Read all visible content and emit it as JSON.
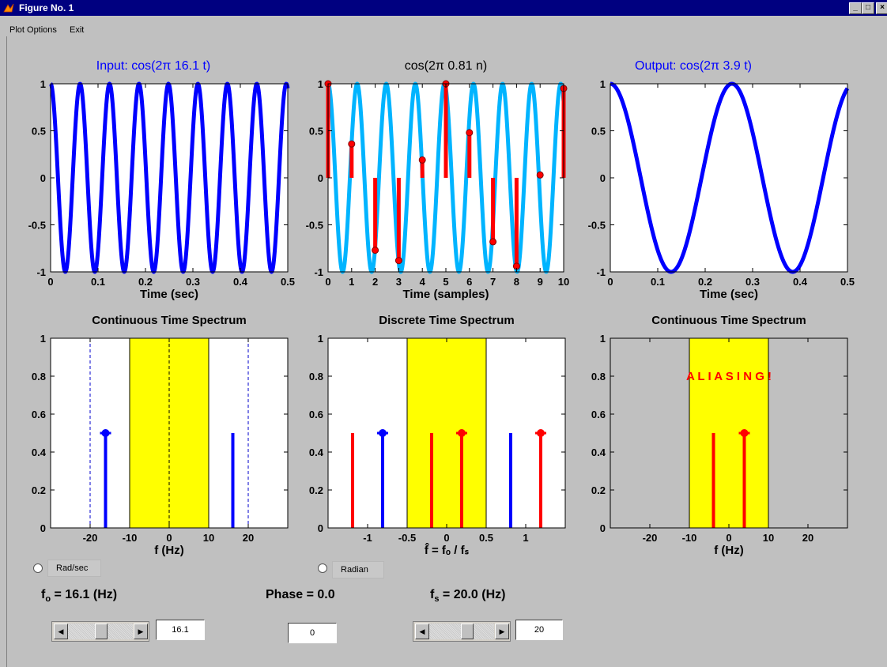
{
  "window": {
    "title": "Figure No. 1"
  },
  "menu": {
    "items": [
      "Plot Options",
      "Exit"
    ]
  },
  "colors": {
    "blue": "#0000ff",
    "cyan": "#00b4ff",
    "red": "#ff0000",
    "yellow": "#ffff00",
    "gray": "#c0c0c0"
  },
  "plots": {
    "input": {
      "title": "Input: cos(2π 16.1 t)",
      "xlabel": "Time (sec)"
    },
    "discrete": {
      "title": "cos(2π 0.81 n)",
      "xlabel": "Time (samples)"
    },
    "output": {
      "title": "Output: cos(2π 3.9 t)",
      "xlabel": "Time (sec)"
    },
    "spec_ct": {
      "title": "Continuous Time Spectrum",
      "xlabel": "f (Hz)"
    },
    "spec_dt": {
      "title": "Discrete Time Spectrum",
      "xlabel": "f̂ = fₒ / fₛ"
    },
    "spec_out": {
      "title": "Continuous Time Spectrum",
      "xlabel": "f (Hz)",
      "annotation": "A L I A S I N G !"
    }
  },
  "chart_data": [
    {
      "type": "line",
      "title": "Input: cos(2π 16.1 t)",
      "xlabel": "Time (sec)",
      "xlim": [
        0,
        0.5
      ],
      "ylim": [
        -1,
        1
      ],
      "xticks": [
        0,
        0.1,
        0.2,
        0.3,
        0.4,
        0.5
      ],
      "yticks": [
        -1,
        -0.5,
        0,
        0.5,
        1
      ],
      "series": [
        {
          "function": "cos(2π 16.1 t)",
          "frequency": 16.1,
          "color": "#0000ff"
        }
      ]
    },
    {
      "type": "line",
      "title": "cos(2π 0.81 n)",
      "xlabel": "Time (samples)",
      "xlim": [
        0,
        10
      ],
      "ylim": [
        -1,
        1
      ],
      "xticks": [
        0,
        1,
        2,
        3,
        4,
        5,
        6,
        7,
        8,
        9,
        10
      ],
      "yticks": [
        -1,
        -0.5,
        0,
        0.5,
        1
      ],
      "series": [
        {
          "function": "cos(2π 0.81 n)",
          "frequency": 0.81,
          "color": "#00b4ff"
        },
        {
          "type": "stem",
          "color": "#ff0000",
          "x": [
            0,
            1,
            2,
            3,
            4,
            5,
            6,
            7,
            8,
            9,
            10
          ],
          "values": [
            1,
            0.36,
            -0.77,
            -0.88,
            0.19,
            1,
            0.48,
            -0.68,
            -0.94,
            0.03,
            0.95
          ]
        }
      ]
    },
    {
      "type": "line",
      "title": "Output: cos(2π 3.9 t)",
      "xlabel": "Time (sec)",
      "xlim": [
        0,
        0.5
      ],
      "ylim": [
        -1,
        1
      ],
      "xticks": [
        0,
        0.1,
        0.2,
        0.3,
        0.4,
        0.5
      ],
      "yticks": [
        -1,
        -0.5,
        0,
        0.5,
        1
      ],
      "series": [
        {
          "function": "cos(2π 3.9 t)",
          "frequency": 3.9,
          "color": "#0000ff"
        }
      ]
    },
    {
      "type": "stem",
      "title": "Continuous Time Spectrum",
      "xlabel": "f (Hz)",
      "xlim": [
        -30,
        30
      ],
      "ylim": [
        0,
        1
      ],
      "xticks": [
        -20,
        -10,
        0,
        10,
        20
      ],
      "yticks": [
        0,
        0.2,
        0.4,
        0.6,
        0.8,
        1
      ],
      "band": [
        -10,
        10
      ],
      "dashed_lines": [
        -20,
        0,
        20
      ],
      "stems": [
        {
          "x": -16.1,
          "y": 0.5,
          "color": "#0000ff",
          "marker": true
        },
        {
          "x": 16.1,
          "y": 0.5,
          "color": "#0000ff",
          "marker": false
        }
      ]
    },
    {
      "type": "stem",
      "title": "Discrete Time Spectrum",
      "xlabel": "f̂ = fₒ / fₛ",
      "xlim": [
        -1.5,
        1.5
      ],
      "ylim": [
        0,
        1
      ],
      "xticks": [
        -1,
        -0.5,
        0,
        0.5,
        1
      ],
      "yticks": [
        0,
        0.2,
        0.4,
        0.6,
        0.8,
        1
      ],
      "band": [
        -0.5,
        0.5
      ],
      "stems": [
        {
          "x": -1.19,
          "y": 0.5,
          "color": "#ff0000",
          "marker": false
        },
        {
          "x": -0.81,
          "y": 0.5,
          "color": "#0000ff",
          "marker": true
        },
        {
          "x": -0.19,
          "y": 0.5,
          "color": "#ff0000",
          "marker": false
        },
        {
          "x": 0.19,
          "y": 0.5,
          "color": "#ff0000",
          "marker": true
        },
        {
          "x": 0.81,
          "y": 0.5,
          "color": "#0000ff",
          "marker": false
        },
        {
          "x": 1.19,
          "y": 0.5,
          "color": "#ff0000",
          "marker": true
        }
      ]
    },
    {
      "type": "stem",
      "title": "Continuous Time Spectrum",
      "xlabel": "f (Hz)",
      "xlim": [
        -30,
        30
      ],
      "ylim": [
        0,
        1
      ],
      "xticks": [
        -20,
        -10,
        0,
        10,
        20
      ],
      "yticks": [
        0,
        0.2,
        0.4,
        0.6,
        0.8,
        1
      ],
      "band": [
        -10,
        10
      ],
      "background": "#c0c0c0",
      "annotation": "A L I A S I N G !",
      "stems": [
        {
          "x": -3.9,
          "y": 0.5,
          "color": "#ff0000",
          "marker": false
        },
        {
          "x": 3.9,
          "y": 0.5,
          "color": "#ff0000",
          "marker": true
        }
      ]
    }
  ],
  "controls": {
    "rad_toggle": "Rad/sec",
    "radian_toggle": "Radian",
    "f0_label": "f",
    "f0_sub": "o",
    "f0_rest": " = 16.1 (Hz)",
    "f0_value": "16.1",
    "phase_label": "Phase = 0.0",
    "phase_value": "0",
    "fs_label": "f",
    "fs_sub": "s",
    "fs_rest": " = 20.0 (Hz)",
    "fs_value": "20"
  }
}
